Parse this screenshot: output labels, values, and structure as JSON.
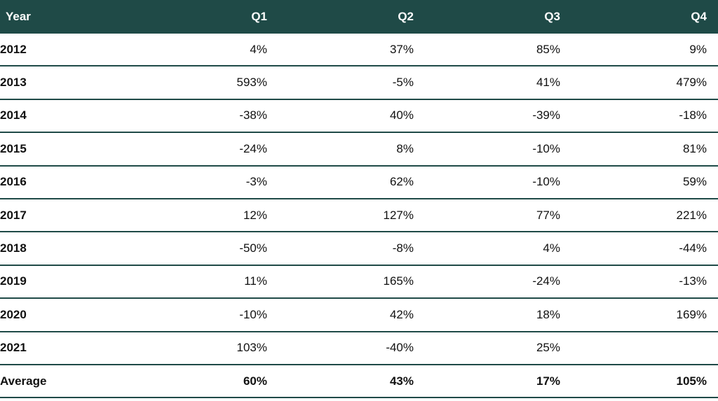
{
  "table": {
    "header": [
      "Year",
      "Q1",
      "Q2",
      "Q3",
      "Q4"
    ],
    "rows": [
      [
        "2012",
        "4%",
        "37%",
        "85%",
        "9%"
      ],
      [
        "2013",
        "593%",
        "-5%",
        "41%",
        "479%"
      ],
      [
        "2014",
        "-38%",
        "40%",
        "-39%",
        "-18%"
      ],
      [
        "2015",
        "-24%",
        "8%",
        "-10%",
        "81%"
      ],
      [
        "2016",
        "-3%",
        "62%",
        "-10%",
        "59%"
      ],
      [
        "2017",
        "12%",
        "127%",
        "77%",
        "221%"
      ],
      [
        "2018",
        "-50%",
        "-8%",
        "4%",
        "-44%"
      ],
      [
        "2019",
        "11%",
        "165%",
        "-24%",
        "-13%"
      ],
      [
        "2020",
        "-10%",
        "42%",
        "18%",
        "169%"
      ],
      [
        "2021",
        "103%",
        "-40%",
        "25%",
        null
      ]
    ],
    "footer": [
      "Average",
      "60%",
      "43%",
      "17%",
      "105%"
    ]
  }
}
